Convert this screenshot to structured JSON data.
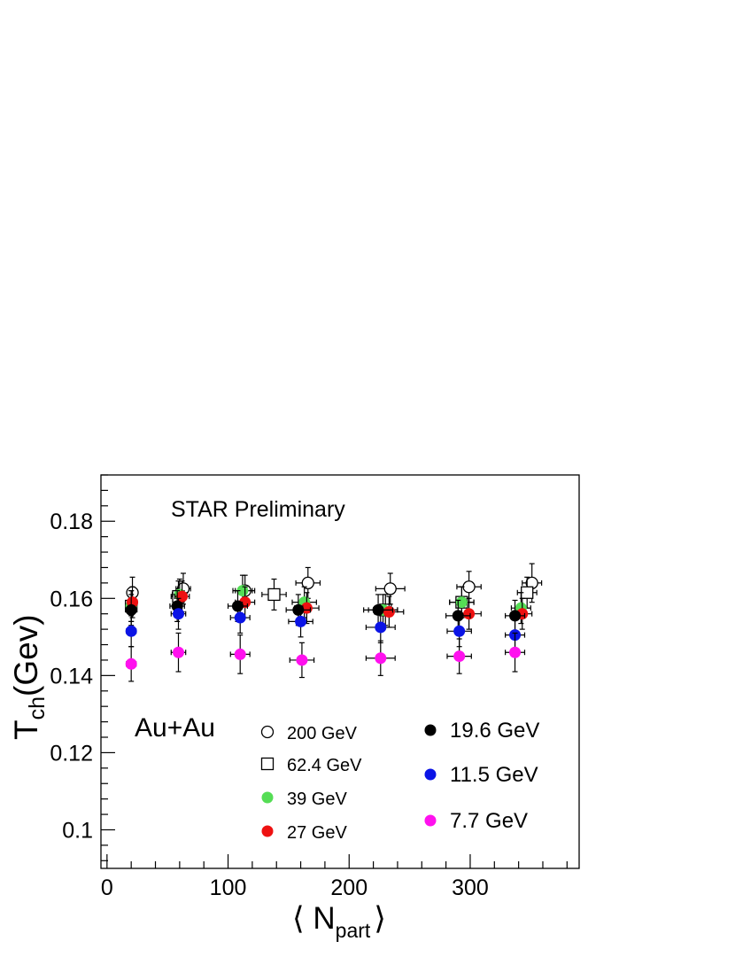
{
  "chart_data": {
    "type": "scatter",
    "title": "",
    "annotation": "STAR Preliminary",
    "system_label": "Au+Au",
    "ylabel": {
      "main": "T",
      "sub": "ch",
      "tail": "(Gev)"
    },
    "xlabel": {
      "left": "⟨ N",
      "sub": "part",
      "right": "⟩"
    },
    "xlim": [
      -5,
      390
    ],
    "ylim": [
      0.09,
      0.192
    ],
    "xticks": [
      0,
      100,
      200,
      300
    ],
    "xtick_labels": [
      "0",
      "100",
      "200",
      "300"
    ],
    "yticks": [
      0.1,
      0.12,
      0.14,
      0.16,
      0.18
    ],
    "ytick_labels": [
      "0.1",
      "0.12",
      "0.14",
      "0.16",
      "0.18"
    ],
    "grid": false,
    "legend_placement": "bottom-right",
    "series": [
      {
        "name": "200 GeV",
        "marker": "open-circle",
        "color": "#000000",
        "x": [
          21,
          63,
          114,
          166,
          234,
          299,
          351
        ],
        "y": [
          0.1615,
          0.1625,
          0.162,
          0.164,
          0.1625,
          0.163,
          0.164
        ],
        "xerr": [
          4,
          6,
          8,
          10,
          12,
          10,
          8
        ],
        "yerr": [
          0.004,
          0.004,
          0.004,
          0.004,
          0.004,
          0.004,
          0.005
        ]
      },
      {
        "name": "62.4 GeV",
        "marker": "open-square",
        "color": "#000000",
        "x": [
          20,
          59,
          138,
          230,
          293,
          347
        ],
        "y": [
          0.158,
          0.1605,
          0.161,
          0.157,
          0.159,
          0.1615
        ],
        "xerr": [
          4,
          6,
          10,
          10,
          10,
          8
        ],
        "yerr": [
          0.004,
          0.004,
          0.004,
          0.004,
          0.004,
          0.004
        ]
      },
      {
        "name": "39 GeV",
        "marker": "filled-circle",
        "color": "#55dd55",
        "x": [
          20,
          60,
          112,
          163,
          228,
          293,
          342
        ],
        "y": [
          0.158,
          0.161,
          0.162,
          0.159,
          0.157,
          0.159,
          0.1575
        ],
        "xerr": [
          4,
          6,
          8,
          10,
          12,
          10,
          8
        ],
        "yerr": [
          0.004,
          0.004,
          0.004,
          0.004,
          0.004,
          0.004,
          0.004
        ]
      },
      {
        "name": "27 GeV",
        "marker": "filled-circle",
        "color": "#ee1111",
        "x": [
          21,
          62,
          114,
          165,
          233,
          299,
          343
        ],
        "y": [
          0.159,
          0.1605,
          0.159,
          0.1575,
          0.1565,
          0.156,
          0.156
        ],
        "xerr": [
          4,
          6,
          8,
          10,
          12,
          10,
          8
        ],
        "yerr": [
          0.004,
          0.004,
          0.004,
          0.004,
          0.004,
          0.004,
          0.004
        ]
      },
      {
        "name": "19.6 GeV",
        "marker": "filled-circle",
        "color": "#000000",
        "x": [
          20,
          58,
          108,
          158,
          224,
          290,
          337
        ],
        "y": [
          0.157,
          0.158,
          0.158,
          0.157,
          0.157,
          0.1555,
          0.1555
        ],
        "xerr": [
          4,
          6,
          8,
          10,
          12,
          10,
          8
        ],
        "yerr": [
          0.004,
          0.004,
          0.004,
          0.004,
          0.004,
          0.004,
          0.004
        ]
      },
      {
        "name": "11.5 GeV",
        "marker": "filled-circle",
        "color": "#0b14e6",
        "x": [
          20,
          59,
          110,
          160,
          226,
          291,
          337
        ],
        "y": [
          0.1515,
          0.156,
          0.155,
          0.154,
          0.1525,
          0.1515,
          0.1505
        ],
        "xerr": [
          4,
          6,
          8,
          10,
          12,
          10,
          8
        ],
        "yerr": [
          0.004,
          0.004,
          0.004,
          0.004,
          0.004,
          0.004,
          0.004
        ]
      },
      {
        "name": "7.7 GeV",
        "marker": "filled-circle",
        "color": "#ff11ee",
        "x": [
          20,
          59,
          110,
          161,
          226,
          291,
          337
        ],
        "y": [
          0.143,
          0.146,
          0.1455,
          0.144,
          0.1445,
          0.145,
          0.146
        ],
        "xerr": [
          4,
          6,
          8,
          10,
          12,
          10,
          8
        ],
        "yerr": [
          0.0045,
          0.005,
          0.005,
          0.0045,
          0.0045,
          0.0045,
          0.005
        ]
      }
    ]
  }
}
